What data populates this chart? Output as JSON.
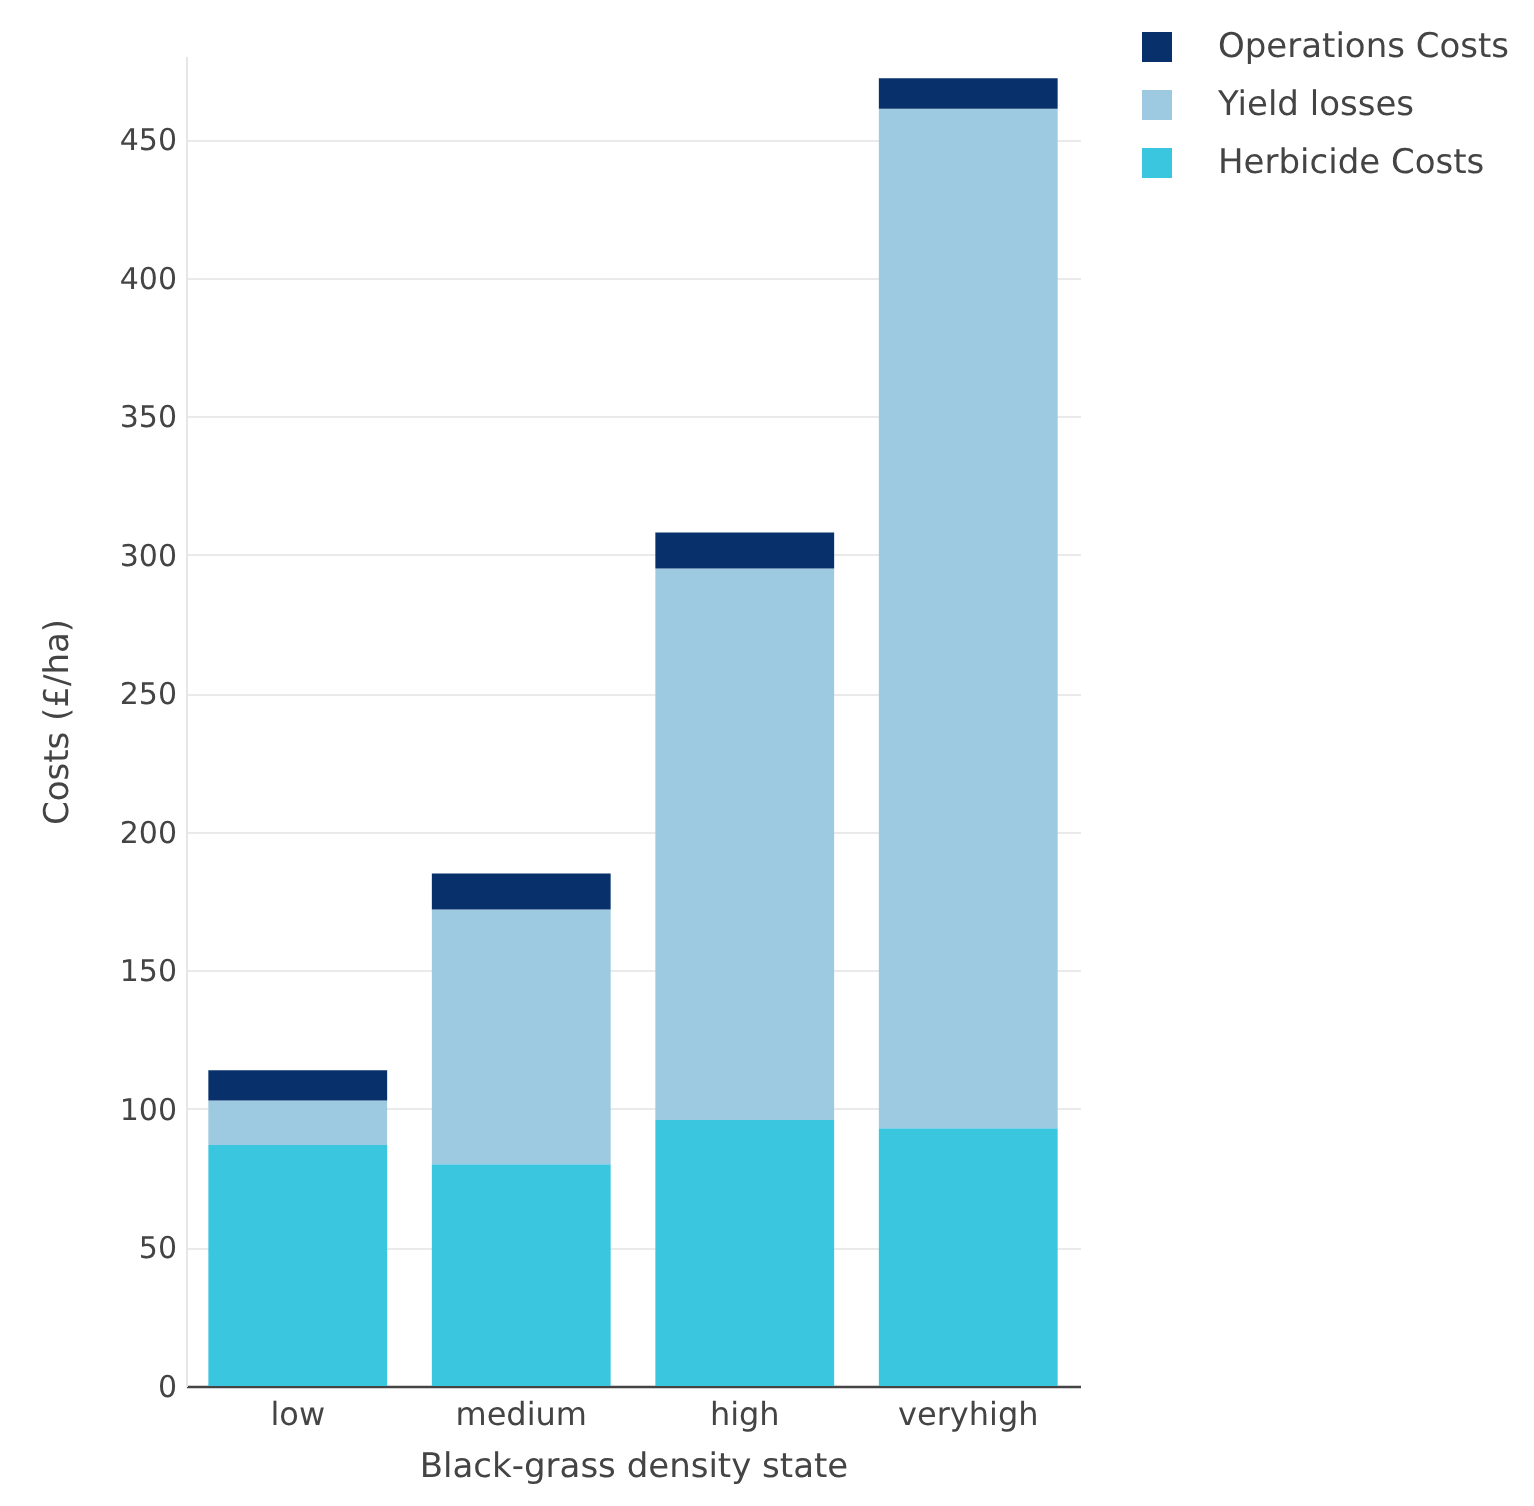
{
  "chart_data": {
    "type": "bar",
    "xlabel": "Black-grass density state",
    "ylabel": "Costs (£/ha)",
    "categories": [
      "low",
      "medium",
      "high",
      "veryhigh"
    ],
    "stacked": true,
    "series": [
      {
        "name": "Herbicide Costs",
        "color": "#3bc6e0",
        "values": [
          87,
          80,
          96,
          93
        ]
      },
      {
        "name": "Yield losses",
        "color": "#9ecae1",
        "values": [
          16,
          92,
          199,
          368
        ]
      },
      {
        "name": "Operations Costs",
        "color": "#08306b",
        "values": [
          11,
          13,
          13,
          11
        ]
      }
    ],
    "ylim": [
      0,
      480
    ],
    "yticks": [
      0,
      50,
      100,
      150,
      200,
      250,
      300,
      350,
      400,
      450
    ],
    "grid": "y",
    "legend": "top right"
  }
}
